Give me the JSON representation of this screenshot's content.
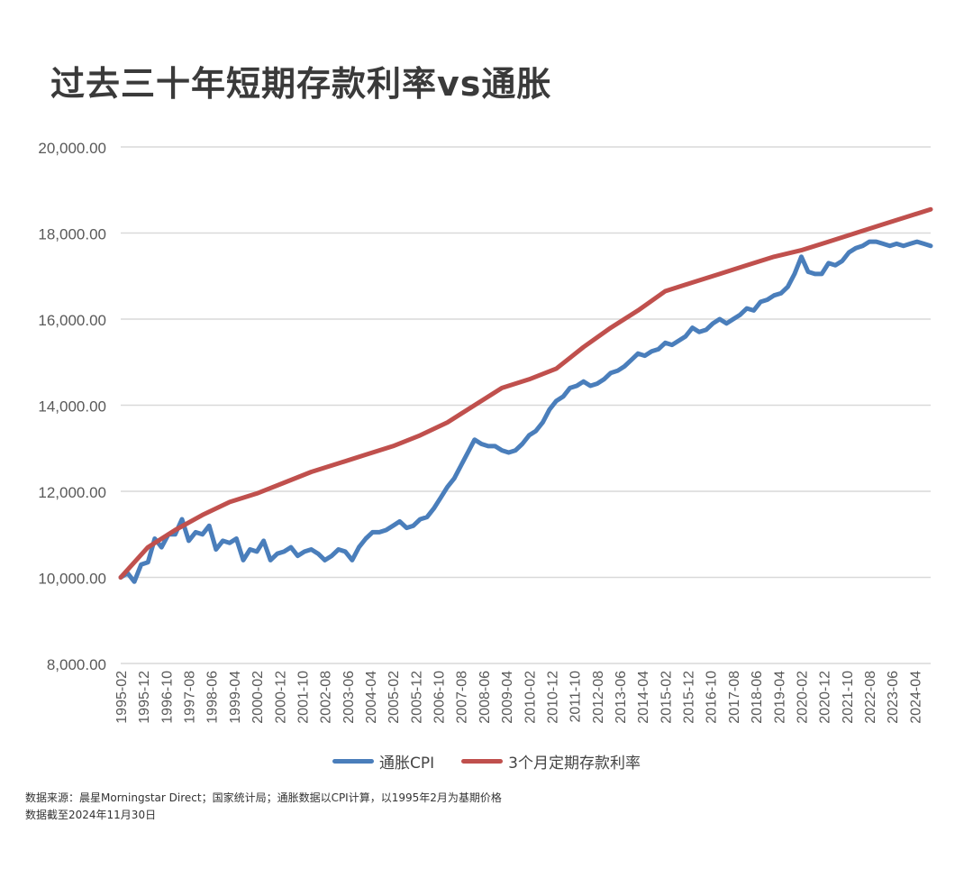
{
  "title": "过去三十年短期存款利率vs通胀",
  "notes": [
    "数据来源：晨星Morningstar Direct；国家统计局；通胀数据以CPI计算，以1995年2月为基期价格",
    "数据截至2024年11月30日"
  ],
  "colors": {
    "cpi": "#4a7ebb",
    "deposit": "#c0504d",
    "grid": "#d9d9d9",
    "axis_text": "#595959"
  },
  "chart_data": {
    "type": "line",
    "ylim": [
      8000,
      20000
    ],
    "y_ticks": [
      "8,000.00",
      "10,000.00",
      "12,000.00",
      "14,000.00",
      "16,000.00",
      "18,000.00",
      "20,000.00"
    ],
    "y_tick_values": [
      8000,
      10000,
      12000,
      14000,
      16000,
      18000,
      20000
    ],
    "x_range": [
      "1995-02",
      "2024-11"
    ],
    "x_ticks": [
      "1995-02",
      "1995-12",
      "1996-10",
      "1997-08",
      "1998-06",
      "1999-04",
      "2000-02",
      "2000-12",
      "2001-10",
      "2002-08",
      "2003-06",
      "2004-04",
      "2005-02",
      "2005-12",
      "2006-10",
      "2007-08",
      "2008-06",
      "2009-04",
      "2010-02",
      "2010-12",
      "2011-10",
      "2012-08",
      "2013-06",
      "2014-04",
      "2015-02",
      "2015-12",
      "2016-10",
      "2017-08",
      "2018-06",
      "2019-04",
      "2020-02",
      "2020-12",
      "2021-10",
      "2022-08",
      "2023-06",
      "2024-04"
    ],
    "legend_position": "bottom",
    "grid": true,
    "series": [
      {
        "name": "通胀CPI",
        "points": [
          [
            "1995-02",
            10000
          ],
          [
            "1995-05",
            10100
          ],
          [
            "1995-08",
            9900
          ],
          [
            "1995-11",
            10300
          ],
          [
            "1996-02",
            10350
          ],
          [
            "1996-05",
            10900
          ],
          [
            "1996-08",
            10700
          ],
          [
            "1996-11",
            11000
          ],
          [
            "1997-02",
            11000
          ],
          [
            "1997-05",
            11350
          ],
          [
            "1997-08",
            10850
          ],
          [
            "1997-11",
            11050
          ],
          [
            "1998-02",
            11000
          ],
          [
            "1998-05",
            11200
          ],
          [
            "1998-08",
            10650
          ],
          [
            "1998-11",
            10850
          ],
          [
            "1999-02",
            10800
          ],
          [
            "1999-05",
            10900
          ],
          [
            "1999-08",
            10400
          ],
          [
            "1999-11",
            10650
          ],
          [
            "2000-02",
            10600
          ],
          [
            "2000-05",
            10850
          ],
          [
            "2000-08",
            10400
          ],
          [
            "2000-11",
            10550
          ],
          [
            "2001-02",
            10600
          ],
          [
            "2001-05",
            10700
          ],
          [
            "2001-08",
            10500
          ],
          [
            "2001-11",
            10600
          ],
          [
            "2002-02",
            10650
          ],
          [
            "2002-05",
            10550
          ],
          [
            "2002-08",
            10400
          ],
          [
            "2002-11",
            10500
          ],
          [
            "2003-02",
            10650
          ],
          [
            "2003-05",
            10600
          ],
          [
            "2003-08",
            10400
          ],
          [
            "2003-11",
            10700
          ],
          [
            "2004-02",
            10900
          ],
          [
            "2004-05",
            11050
          ],
          [
            "2004-08",
            11050
          ],
          [
            "2004-11",
            11100
          ],
          [
            "2005-02",
            11200
          ],
          [
            "2005-05",
            11300
          ],
          [
            "2005-08",
            11150
          ],
          [
            "2005-11",
            11200
          ],
          [
            "2006-02",
            11350
          ],
          [
            "2006-05",
            11400
          ],
          [
            "2006-08",
            11600
          ],
          [
            "2006-11",
            11850
          ],
          [
            "2007-02",
            12100
          ],
          [
            "2007-05",
            12300
          ],
          [
            "2007-08",
            12600
          ],
          [
            "2007-11",
            12900
          ],
          [
            "2008-02",
            13200
          ],
          [
            "2008-05",
            13100
          ],
          [
            "2008-08",
            13050
          ],
          [
            "2008-11",
            13050
          ],
          [
            "2009-02",
            12950
          ],
          [
            "2009-05",
            12900
          ],
          [
            "2009-08",
            12950
          ],
          [
            "2009-11",
            13100
          ],
          [
            "2010-02",
            13300
          ],
          [
            "2010-05",
            13400
          ],
          [
            "2010-08",
            13600
          ],
          [
            "2010-11",
            13900
          ],
          [
            "2011-02",
            14100
          ],
          [
            "2011-05",
            14200
          ],
          [
            "2011-08",
            14400
          ],
          [
            "2011-11",
            14450
          ],
          [
            "2012-02",
            14550
          ],
          [
            "2012-05",
            14450
          ],
          [
            "2012-08",
            14500
          ],
          [
            "2012-11",
            14600
          ],
          [
            "2013-02",
            14750
          ],
          [
            "2013-05",
            14800
          ],
          [
            "2013-08",
            14900
          ],
          [
            "2013-11",
            15050
          ],
          [
            "2014-02",
            15200
          ],
          [
            "2014-05",
            15150
          ],
          [
            "2014-08",
            15250
          ],
          [
            "2014-11",
            15300
          ],
          [
            "2015-02",
            15450
          ],
          [
            "2015-05",
            15400
          ],
          [
            "2015-08",
            15500
          ],
          [
            "2015-11",
            15600
          ],
          [
            "2016-02",
            15800
          ],
          [
            "2016-05",
            15700
          ],
          [
            "2016-08",
            15750
          ],
          [
            "2016-11",
            15900
          ],
          [
            "2017-02",
            16000
          ],
          [
            "2017-05",
            15900
          ],
          [
            "2017-08",
            16000
          ],
          [
            "2017-11",
            16100
          ],
          [
            "2018-02",
            16250
          ],
          [
            "2018-05",
            16200
          ],
          [
            "2018-08",
            16400
          ],
          [
            "2018-11",
            16450
          ],
          [
            "2019-02",
            16550
          ],
          [
            "2019-05",
            16600
          ],
          [
            "2019-08",
            16750
          ],
          [
            "2019-11",
            17050
          ],
          [
            "2020-02",
            17450
          ],
          [
            "2020-05",
            17100
          ],
          [
            "2020-08",
            17050
          ],
          [
            "2020-11",
            17050
          ],
          [
            "2021-02",
            17300
          ],
          [
            "2021-05",
            17250
          ],
          [
            "2021-08",
            17350
          ],
          [
            "2021-11",
            17550
          ],
          [
            "2022-02",
            17650
          ],
          [
            "2022-05",
            17700
          ],
          [
            "2022-08",
            17800
          ],
          [
            "2022-11",
            17800
          ],
          [
            "2023-02",
            17750
          ],
          [
            "2023-05",
            17700
          ],
          [
            "2023-08",
            17750
          ],
          [
            "2023-11",
            17700
          ],
          [
            "2024-02",
            17750
          ],
          [
            "2024-05",
            17800
          ],
          [
            "2024-08",
            17750
          ],
          [
            "2024-11",
            17700
          ]
        ]
      },
      {
        "name": "3个月定期存款利率",
        "points": [
          [
            "1995-02",
            10000
          ],
          [
            "1996-02",
            10700
          ],
          [
            "1997-02",
            11100
          ],
          [
            "1998-02",
            11450
          ],
          [
            "1999-02",
            11750
          ],
          [
            "2000-02",
            11950
          ],
          [
            "2001-02",
            12200
          ],
          [
            "2002-02",
            12450
          ],
          [
            "2003-02",
            12650
          ],
          [
            "2004-02",
            12850
          ],
          [
            "2005-02",
            13050
          ],
          [
            "2006-02",
            13300
          ],
          [
            "2007-02",
            13600
          ],
          [
            "2008-02",
            14000
          ],
          [
            "2009-02",
            14400
          ],
          [
            "2010-02",
            14600
          ],
          [
            "2011-02",
            14850
          ],
          [
            "2012-02",
            15350
          ],
          [
            "2013-02",
            15800
          ],
          [
            "2014-02",
            16200
          ],
          [
            "2015-02",
            16650
          ],
          [
            "2016-02",
            16850
          ],
          [
            "2017-02",
            17050
          ],
          [
            "2018-02",
            17250
          ],
          [
            "2019-02",
            17450
          ],
          [
            "2020-02",
            17600
          ],
          [
            "2021-02",
            17800
          ],
          [
            "2022-02",
            18000
          ],
          [
            "2023-02",
            18200
          ],
          [
            "2024-02",
            18400
          ],
          [
            "2024-11",
            18550
          ]
        ]
      }
    ]
  }
}
